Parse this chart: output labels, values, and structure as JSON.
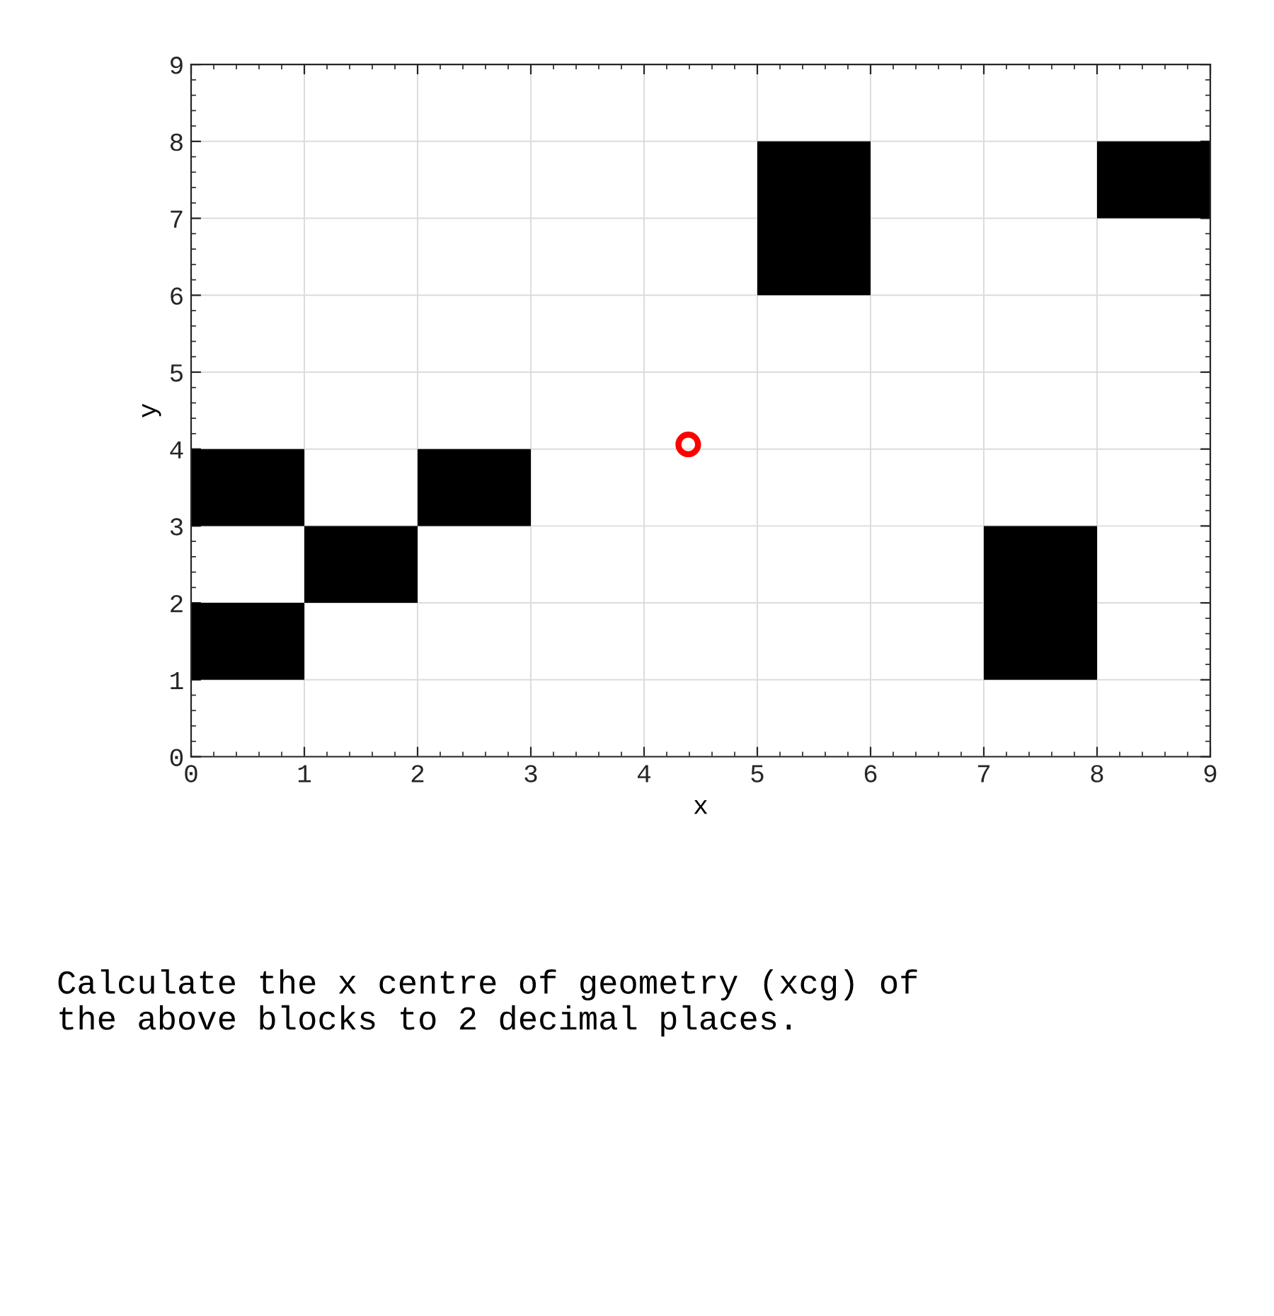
{
  "chart_data": {
    "type": "bar",
    "xlabel": "x",
    "ylabel": "y",
    "xlim": [
      0,
      9
    ],
    "ylim": [
      0,
      9
    ],
    "xticks": [
      0,
      1,
      2,
      3,
      4,
      5,
      6,
      7,
      8,
      9
    ],
    "yticks": [
      0,
      1,
      2,
      3,
      4,
      5,
      6,
      7,
      8,
      9
    ],
    "grid": true,
    "legend": false,
    "series": [
      {
        "color": "#000000",
        "x": [
          0.5,
          1.5,
          2.5,
          3.5,
          4.5,
          5.5,
          6.5,
          7.5,
          8.5
        ],
        "base": [
          1,
          2,
          3,
          null,
          null,
          6,
          null,
          1,
          7
        ],
        "values": [
          1,
          1,
          1,
          null,
          null,
          2,
          null,
          2,
          1
        ]
      },
      {
        "color": "#000000",
        "x": [
          0.5
        ],
        "base": [
          3
        ],
        "values": [
          1
        ]
      },
      {
        "type": "scatter",
        "color": "#ff0000",
        "marker": "circle",
        "x": [
          4.39
        ],
        "values": [
          4.06
        ]
      }
    ],
    "annotations": [
      "Calculate the x centre of geometry (xcg) of\nthe above blocks to 2 decimal places."
    ]
  }
}
